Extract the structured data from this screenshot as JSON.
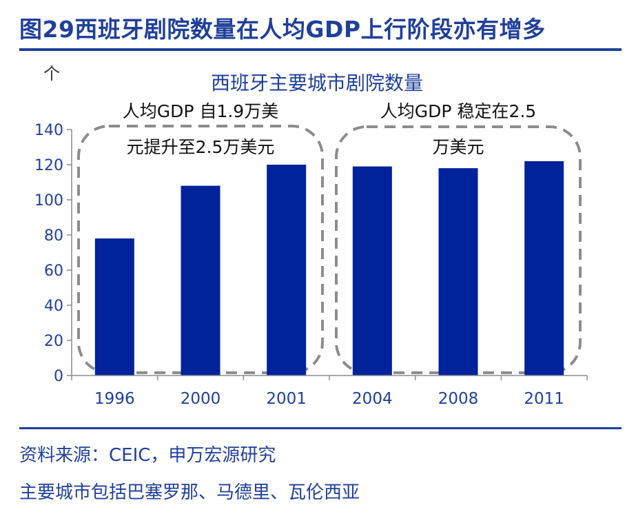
{
  "figure": {
    "title": "图29西班牙剧院数量在人均GDP上行阶段亦有增多",
    "source": "资料来源：CEIC，申万宏源研究",
    "note": "主要城市包括巴塞罗那、马德里、瓦伦西亚"
  },
  "chart_data": {
    "type": "bar",
    "title": "西班牙主要城市剧院数量",
    "ylabel": "个",
    "xlabel": "",
    "categories": [
      "1996",
      "2000",
      "2001",
      "2004",
      "2008",
      "2011"
    ],
    "values": [
      78,
      108,
      120,
      119,
      118,
      122
    ],
    "ylim": [
      0,
      140
    ],
    "yticks": [
      0,
      20,
      40,
      60,
      80,
      100,
      120,
      140
    ],
    "grid": false,
    "bar_color": "#00239c",
    "annotations": [
      {
        "lines": [
          "人均GDP 自1.9万美",
          "元提升至2.5万美元"
        ],
        "categories": [
          "1996",
          "2000",
          "2001"
        ]
      },
      {
        "lines": [
          "人均GDP 稳定在2.5",
          "万美元"
        ],
        "categories": [
          "2004",
          "2008",
          "2011"
        ]
      }
    ]
  }
}
